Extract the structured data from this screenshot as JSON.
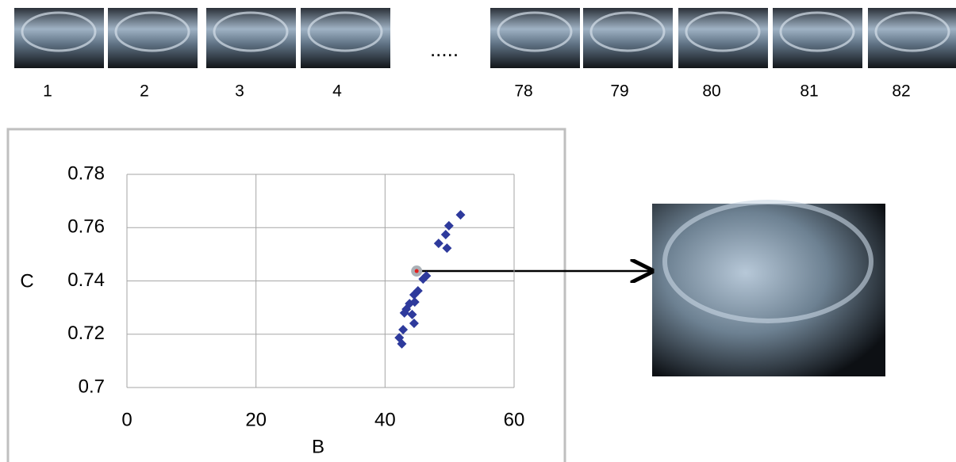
{
  "frames": {
    "labels": [
      "1",
      "2",
      "3",
      "4",
      "78",
      "79",
      "80",
      "81",
      "82"
    ],
    "gap_label": "....."
  },
  "chart_data": {
    "type": "scatter",
    "x_label": "B",
    "y_label": "C",
    "xlim": [
      0,
      60
    ],
    "xticks": [
      0,
      20,
      40,
      60
    ],
    "ylim": [
      0.7,
      0.78
    ],
    "yticks": [
      0.7,
      0.72,
      0.74,
      0.76,
      0.78
    ],
    "grid": true,
    "series": [
      {
        "color": "#2e3a9c",
        "marker": "diamond",
        "x": [
          51.7,
          49.9,
          49.4,
          48.3,
          49.6,
          46.4,
          45.9,
          45.1,
          44.5,
          43.8,
          43.3,
          44.6,
          44.2,
          43.0,
          44.5,
          42.8,
          42.2,
          42.6
        ],
        "values": [
          0.7648,
          0.7607,
          0.7574,
          0.7541,
          0.7523,
          0.7419,
          0.7407,
          0.7363,
          0.7348,
          0.7315,
          0.7294,
          0.7321,
          0.7274,
          0.728,
          0.7241,
          0.7217,
          0.7187,
          0.7164
        ]
      },
      {
        "color": "#e02020",
        "marker": "highlight",
        "x": [
          44.9
        ],
        "values": [
          0.7437
        ]
      }
    ]
  }
}
